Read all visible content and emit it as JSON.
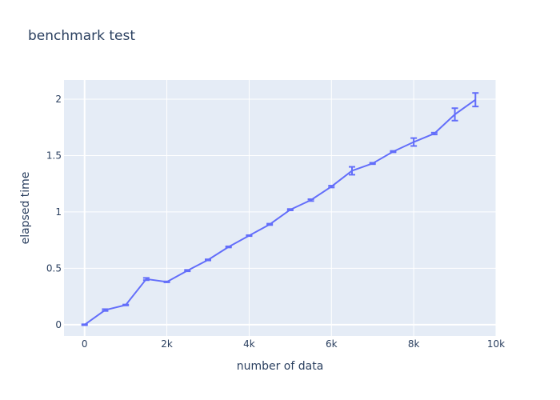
{
  "chart_data": {
    "type": "line",
    "title": "benchmark test",
    "xlabel": "number of data",
    "ylabel": "elapsed time",
    "xlim": [
      -500,
      10000
    ],
    "ylim": [
      -0.1,
      2.17
    ],
    "x_ticks": [
      0,
      2000,
      4000,
      6000,
      8000,
      10000
    ],
    "x_tick_labels": [
      "0",
      "2k",
      "4k",
      "6k",
      "8k",
      "10k"
    ],
    "y_ticks": [
      0,
      0.5,
      1,
      1.5,
      2
    ],
    "y_tick_labels": [
      "0",
      "0.5",
      "1",
      "1.5",
      "2"
    ],
    "grid": true,
    "legend": "none",
    "colors": {
      "series": "#636efa",
      "plot_background": "#e5ecf6",
      "grid": "#ffffff",
      "text": "#2a3f5f"
    },
    "series": [
      {
        "x": [
          0,
          500,
          1000,
          1500,
          2000,
          2500,
          3000,
          3500,
          4000,
          4500,
          5000,
          5500,
          6000,
          6500,
          7000,
          7500,
          8000,
          8500,
          9000,
          9500
        ],
        "y": [
          0.0,
          0.13,
          0.175,
          0.405,
          0.38,
          0.48,
          0.575,
          0.69,
          0.79,
          0.89,
          1.02,
          1.105,
          1.225,
          1.365,
          1.43,
          1.535,
          1.62,
          1.695,
          1.865,
          1.995
        ],
        "error": [
          0.004,
          0.008,
          0.004,
          0.01,
          0.004,
          0.006,
          0.005,
          0.005,
          0.004,
          0.006,
          0.006,
          0.008,
          0.008,
          0.035,
          0.006,
          0.006,
          0.035,
          0.008,
          0.055,
          0.06
        ]
      }
    ]
  }
}
